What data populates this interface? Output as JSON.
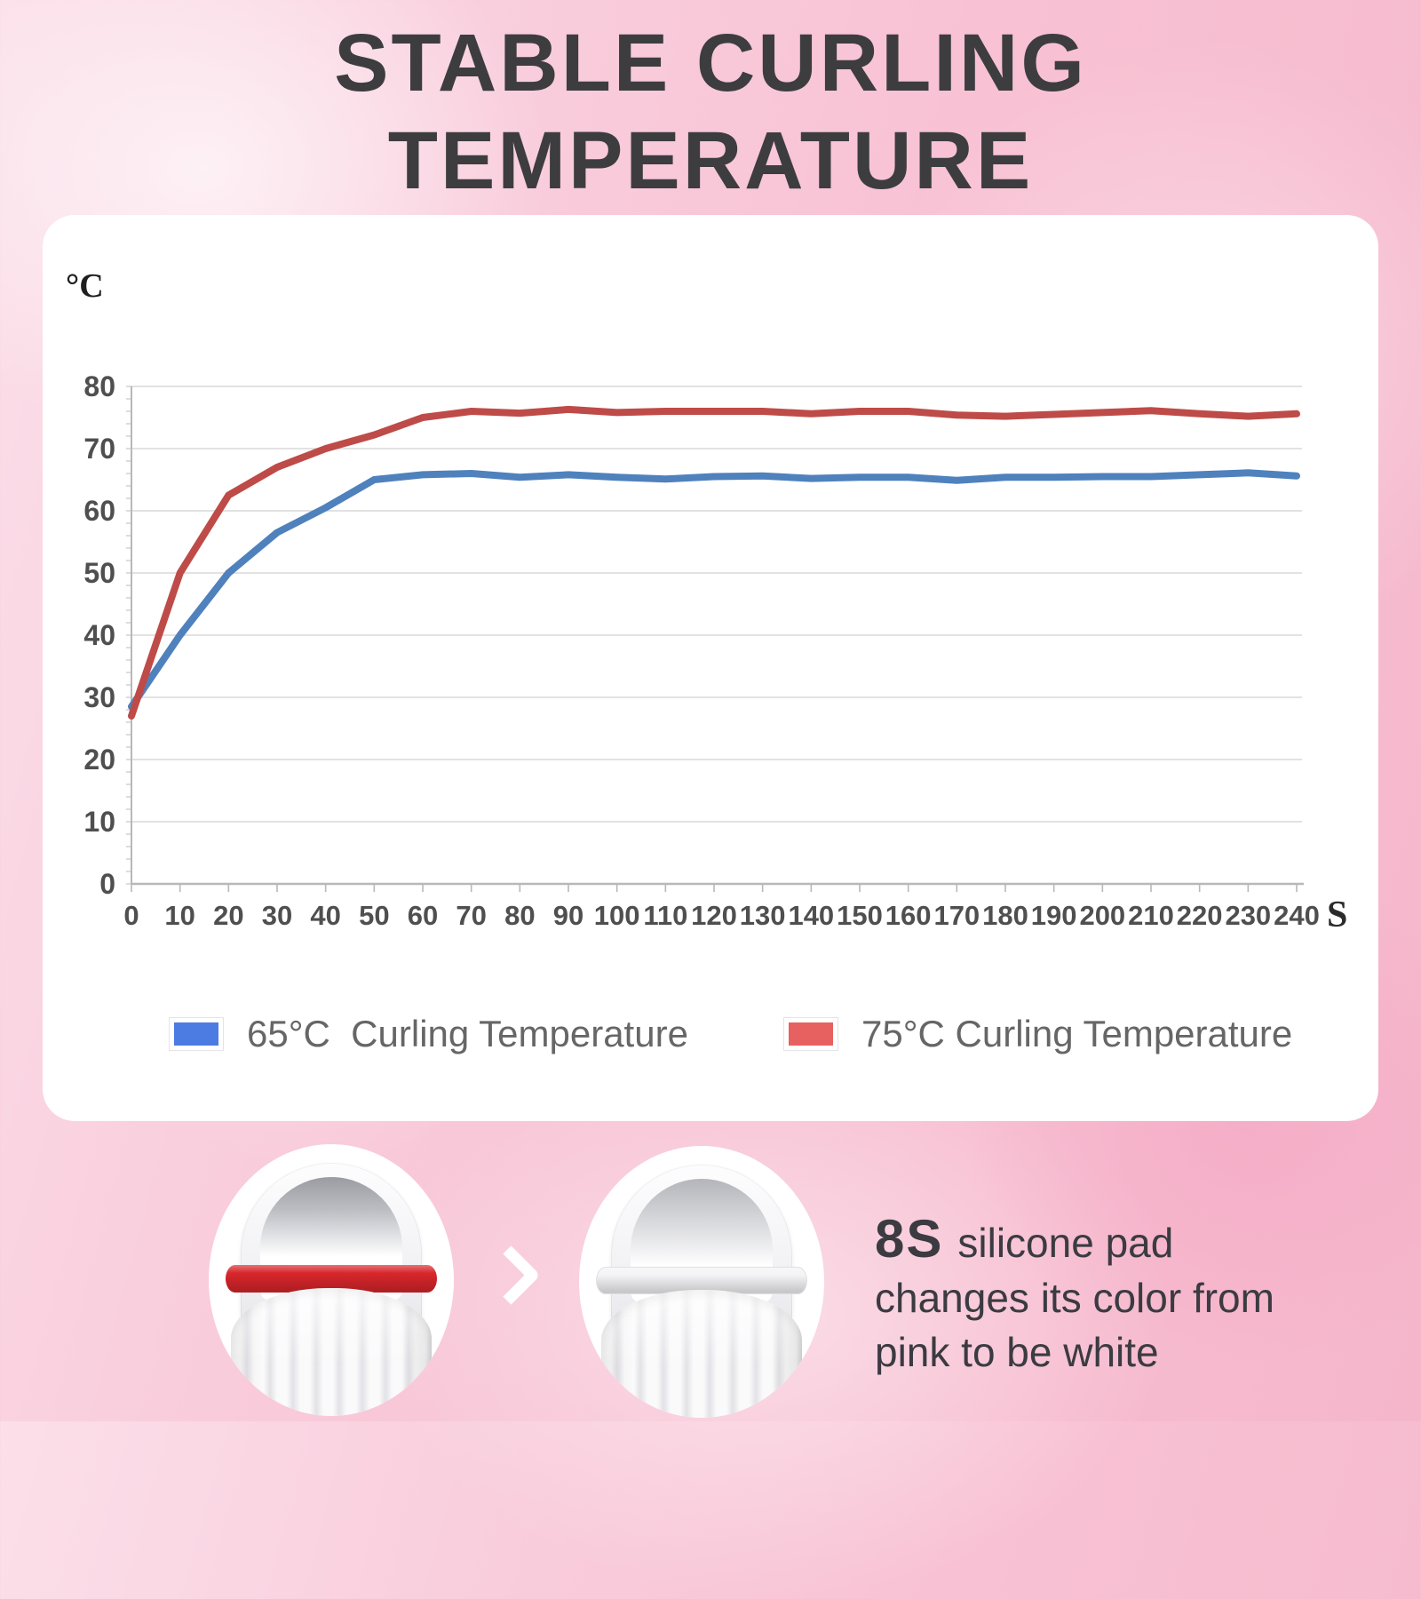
{
  "title": {
    "line1": "STABLE CURLING",
    "line2": "TEMPERATURE"
  },
  "chart_data": {
    "type": "line",
    "title": "Stable curling temperature over time",
    "xlabel": "S",
    "ylabel": "°C",
    "x": [
      0,
      10,
      20,
      30,
      40,
      50,
      60,
      70,
      80,
      90,
      100,
      110,
      120,
      130,
      140,
      150,
      160,
      170,
      180,
      190,
      200,
      210,
      220,
      230,
      240
    ],
    "ylim": [
      0,
      80
    ],
    "y_tick_step": 10,
    "y_minor_step": 2,
    "grid": true,
    "legend_position": "bottom",
    "series": [
      {
        "name": "65°C  Curling Temperature",
        "line_color": "#4f81bd",
        "legend_color": "#4c7ce2",
        "values": [
          28.5,
          40,
          50,
          56.5,
          60.5,
          65,
          65.8,
          66,
          65.4,
          65.8,
          65.4,
          65.1,
          65.5,
          65.6,
          65.2,
          65.4,
          65.4,
          64.9,
          65.4,
          65.4,
          65.5,
          65.5,
          65.8,
          66.1,
          65.6
        ]
      },
      {
        "name": "75°C Curling Temperature",
        "line_color": "#be4b48",
        "legend_color": "#e66160",
        "values": [
          27,
          50,
          62.5,
          67,
          70,
          72.2,
          75,
          76,
          75.7,
          76.3,
          75.8,
          76,
          76,
          76,
          75.6,
          76,
          76,
          75.4,
          75.2,
          75.5,
          75.8,
          76.1,
          75.6,
          75.2,
          75.6
        ]
      }
    ]
  },
  "footer": {
    "highlight": "8S",
    "caption_line1": "silicone pad",
    "caption_line2": "changes its color from",
    "caption_line3": "pink to be white",
    "pad_before_color": "#d8262b",
    "pad_after_color": "#f4f4f6",
    "arrow_color": "#ffffff"
  }
}
